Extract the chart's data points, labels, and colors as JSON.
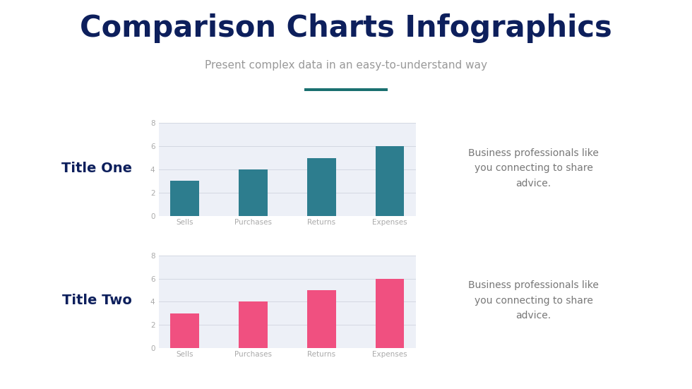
{
  "title": "Comparison Charts Infographics",
  "subtitle": "Present complex data in an easy-to-understand way",
  "title_color": "#0d1f5c",
  "subtitle_color": "#999999",
  "accent_line_color": "#1a7070",
  "bg_color": "#ffffff",
  "panel_color": "#edf0f7",
  "charts": [
    {
      "label": "Title One",
      "label_color": "#0d1f5c",
      "bar_color": "#2d7d8e",
      "categories": [
        "Sells",
        "Purchases",
        "Returns",
        "Expenses"
      ],
      "values": [
        3,
        4,
        5,
        6
      ],
      "description": "Business professionals like\nyou connecting to share\nadvice.",
      "desc_color": "#777777"
    },
    {
      "label": "Title Two",
      "label_color": "#0d1f5c",
      "bar_color": "#f05080",
      "categories": [
        "Sells",
        "Purchases",
        "Returns",
        "Expenses"
      ],
      "values": [
        3,
        4,
        5,
        6
      ],
      "description": "Business professionals like\nyou connecting to share\nadvice.",
      "desc_color": "#777777"
    }
  ],
  "ylim": [
    0,
    8
  ],
  "yticks": [
    0,
    2,
    4,
    6,
    8
  ],
  "grid_color": "#d0d4df",
  "tick_label_color": "#aaaaaa",
  "cat_label_color": "#aaaaaa",
  "figsize": [
    9.8,
    5.51
  ],
  "dpi": 100
}
